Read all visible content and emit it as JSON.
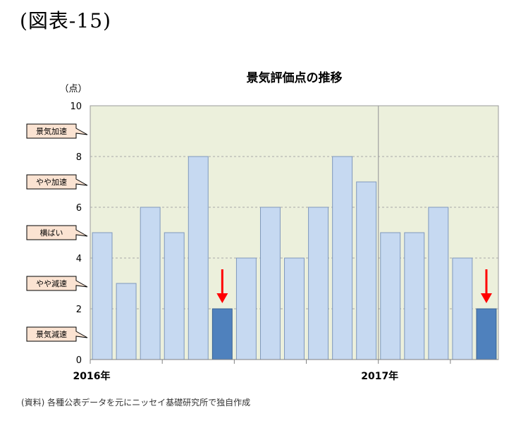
{
  "figure_label": "(図表-15)",
  "source_note": "(資料) 各種公表データを元にニッセイ基礎研究所で独自作成",
  "colors": {
    "plot_bg": "#ecf0dc",
    "bar_normal": "#c6d9f1",
    "bar_normal_edge": "#7f98bd",
    "bar_highlight": "#4f81bd",
    "bar_highlight_edge": "#3a6293",
    "callout_fill": "#fbe3d2",
    "arrow": "#ff0000"
  },
  "chart_data": {
    "type": "bar",
    "title": "景気評価点の推移",
    "ylabel": "（点）",
    "ylim": [
      0,
      10
    ],
    "yticks": [
      0,
      2,
      4,
      6,
      8,
      10
    ],
    "grid": true,
    "values": [
      5,
      3,
      6,
      5,
      8,
      2,
      4,
      6,
      4,
      6,
      8,
      7,
      5,
      5,
      6,
      4,
      2
    ],
    "highlight_indices": [
      5,
      16
    ],
    "arrow_indices": [
      5,
      16
    ],
    "x_labels": [
      {
        "text": "2016年",
        "index": 0
      },
      {
        "text": "2017年",
        "index": 12
      }
    ],
    "year_divider_index": 12,
    "level_callouts": [
      {
        "text": "景気加速",
        "y": 9
      },
      {
        "text": "やや加速",
        "y": 7
      },
      {
        "text": "横ばい",
        "y": 5
      },
      {
        "text": "やや減速",
        "y": 3
      },
      {
        "text": "景気減速",
        "y": 1
      }
    ]
  }
}
